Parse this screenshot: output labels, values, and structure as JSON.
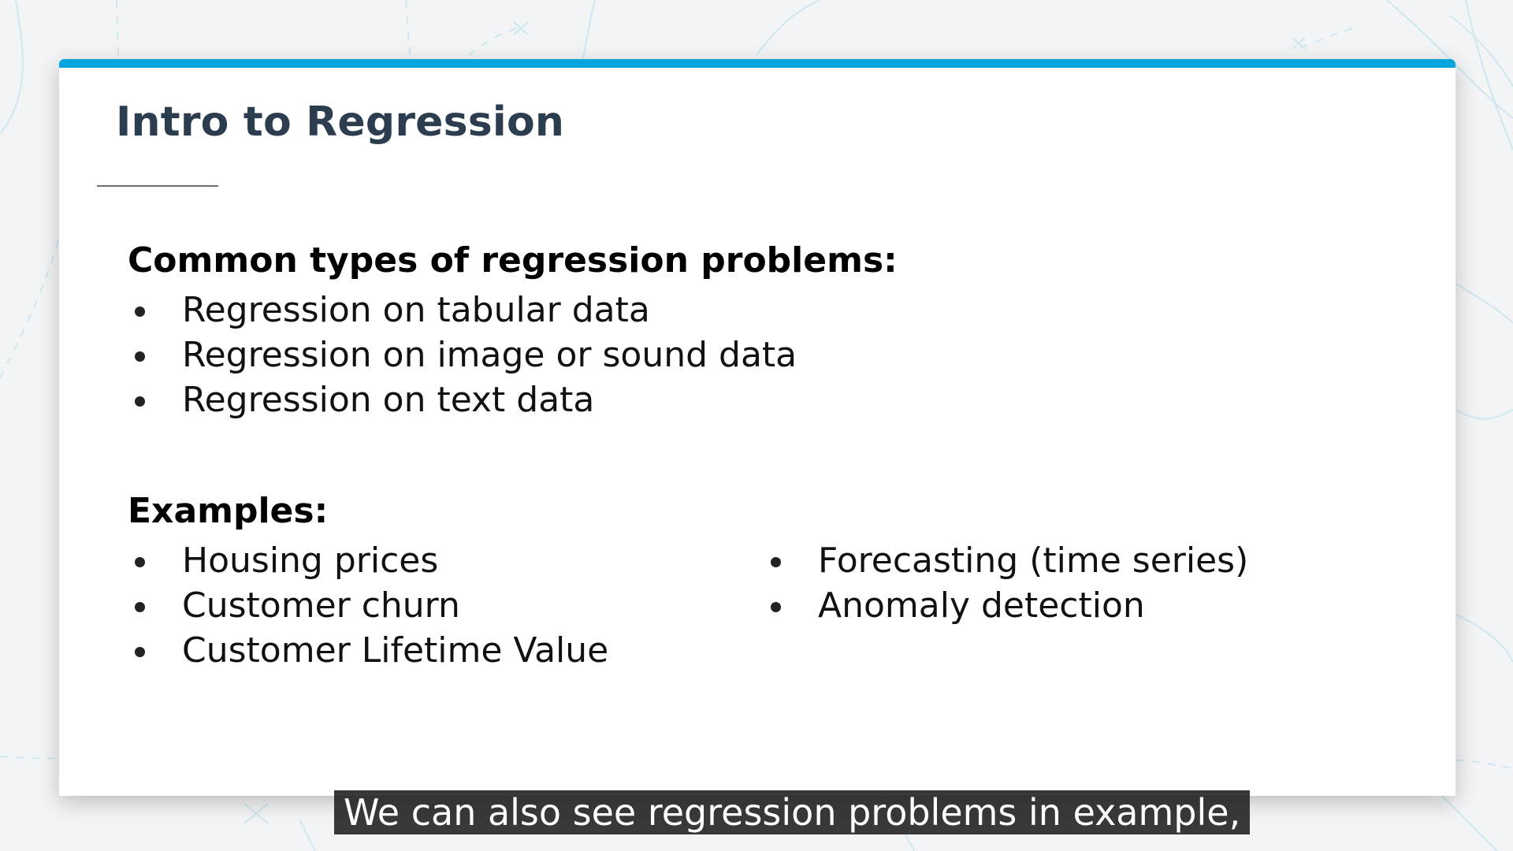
{
  "slide": {
    "title": "Intro to Regression",
    "accent_color": "#0aa4dd",
    "types_heading": "Common types of regression problems:",
    "types": [
      "Regression on tabular data",
      "Regression on image or sound data",
      "Regression on text data"
    ],
    "examples_heading": "Examples:",
    "examples_left": [
      "Housing prices",
      "Customer churn",
      "Customer Lifetime Value"
    ],
    "examples_right": [
      "Forecasting (time series)",
      "Anomaly detection"
    ]
  },
  "caption": {
    "text": "We can also see regression problems in example,"
  }
}
